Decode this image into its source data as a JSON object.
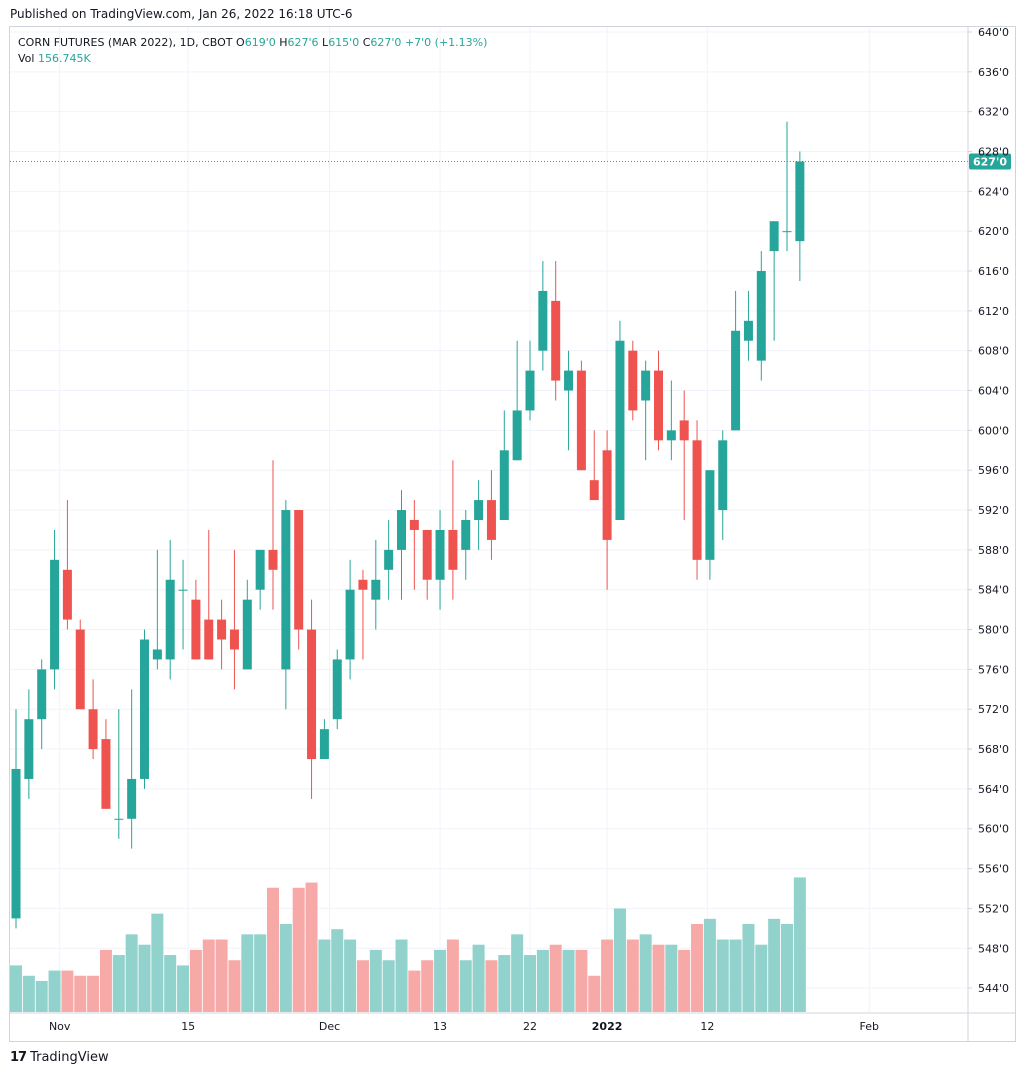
{
  "header": {
    "published": "Published on TradingView.com, Jan 26, 2022 16:18 UTC-6"
  },
  "legend": {
    "symbol": "CORN FUTURES (MAR 2022), 1D, CBOT",
    "o_label": "O",
    "o_value": "619'0",
    "h_label": "H",
    "h_value": "627'6",
    "l_label": "L",
    "l_value": "615'0",
    "c_label": "C",
    "c_value": "627'0",
    "change": "+7'0 (+1.13%)",
    "vol_label": "Vol",
    "vol_value": "156.745K"
  },
  "footer": {
    "brand": "TradingView",
    "logo": "17"
  },
  "colors": {
    "up": "#26a69a",
    "down": "#ef5350",
    "up_vol": "#92d2cc",
    "down_vol": "#f7a9a7",
    "grid": "#f0f3fa",
    "axis": "#d1d4dc"
  },
  "chart_data": {
    "type": "candlestick",
    "y_ticks": [
      "544'0",
      "548'0",
      "552'0",
      "556'0",
      "560'0",
      "564'0",
      "568'0",
      "572'0",
      "576'0",
      "580'0",
      "584'0",
      "588'0",
      "592'0",
      "596'0",
      "600'0",
      "604'0",
      "608'0",
      "612'0",
      "616'0",
      "620'0",
      "624'0",
      "628'0",
      "632'0",
      "636'0",
      "640'0"
    ],
    "y_tick_values": [
      544,
      548,
      552,
      556,
      560,
      564,
      568,
      572,
      576,
      580,
      584,
      588,
      592,
      596,
      600,
      604,
      608,
      612,
      616,
      620,
      624,
      628,
      632,
      636,
      640
    ],
    "ylim": [
      541.5,
      640.5
    ],
    "x_labels": [
      {
        "label": "Nov",
        "index": 3.4
      },
      {
        "label": "15",
        "index": 13.4
      },
      {
        "label": "Dec",
        "index": 24.4
      },
      {
        "label": "13",
        "index": 33.0
      },
      {
        "label": "22",
        "index": 40.0
      },
      {
        "label": "2022",
        "index": 46.0,
        "bold": true
      },
      {
        "label": "12",
        "index": 53.8
      },
      {
        "label": "Feb",
        "index": 66.4
      }
    ],
    "last_price": 627,
    "last_price_label": "627'0",
    "candles": [
      {
        "o": 551,
        "h": 572,
        "l": 550,
        "c": 566,
        "v": 548
      },
      {
        "o": 565,
        "h": 574,
        "l": 563,
        "c": 571,
        "v": 546
      },
      {
        "o": 571,
        "h": 577,
        "l": 568,
        "c": 576,
        "v": 545
      },
      {
        "o": 576,
        "h": 590,
        "l": 574,
        "c": 587,
        "v": 547
      },
      {
        "o": 586,
        "h": 593,
        "l": 580,
        "c": 581,
        "v": 547
      },
      {
        "o": 580,
        "h": 581,
        "l": 572,
        "c": 572,
        "v": 546
      },
      {
        "o": 572,
        "h": 575,
        "l": 567,
        "c": 568,
        "v": 546
      },
      {
        "o": 569,
        "h": 571,
        "l": 562,
        "c": 562,
        "v": 551
      },
      {
        "o": 561,
        "h": 572,
        "l": 559,
        "c": 561,
        "v": 550
      },
      {
        "o": 561,
        "h": 574,
        "l": 558,
        "c": 565,
        "v": 554
      },
      {
        "o": 565,
        "h": 580,
        "l": 564,
        "c": 579,
        "v": 552
      },
      {
        "o": 577,
        "h": 588,
        "l": 576,
        "c": 578,
        "v": 558
      },
      {
        "o": 577,
        "h": 589,
        "l": 575,
        "c": 585,
        "v": 550
      },
      {
        "o": 584,
        "h": 587,
        "l": 578,
        "c": 584,
        "v": 548
      },
      {
        "o": 583,
        "h": 585,
        "l": 577,
        "c": 577,
        "v": 551
      },
      {
        "o": 581,
        "h": 590,
        "l": 577,
        "c": 577,
        "v": 553
      },
      {
        "o": 581,
        "h": 583,
        "l": 576,
        "c": 579,
        "v": 553
      },
      {
        "o": 580,
        "h": 588,
        "l": 574,
        "c": 578,
        "v": 549
      },
      {
        "o": 576,
        "h": 585,
        "l": 576,
        "c": 583,
        "v": 554
      },
      {
        "o": 584,
        "h": 588,
        "l": 582,
        "c": 588,
        "v": 554
      },
      {
        "o": 588,
        "h": 597,
        "l": 582,
        "c": 586,
        "v": 563
      },
      {
        "o": 576,
        "h": 593,
        "l": 572,
        "c": 592,
        "v": 556
      },
      {
        "o": 592,
        "h": 592,
        "l": 578,
        "c": 580,
        "v": 563
      },
      {
        "o": 580,
        "h": 583,
        "l": 563,
        "c": 567,
        "v": 564
      },
      {
        "o": 567,
        "h": 571,
        "l": 567,
        "c": 570,
        "v": 553
      },
      {
        "o": 571,
        "h": 578,
        "l": 570,
        "c": 577,
        "v": 555
      },
      {
        "o": 577,
        "h": 587,
        "l": 575,
        "c": 584,
        "v": 553
      },
      {
        "o": 585,
        "h": 586,
        "l": 577,
        "c": 584,
        "v": 549
      },
      {
        "o": 583,
        "h": 589,
        "l": 580,
        "c": 585,
        "v": 551
      },
      {
        "o": 586,
        "h": 591,
        "l": 583,
        "c": 588,
        "v": 549
      },
      {
        "o": 588,
        "h": 594,
        "l": 583,
        "c": 592,
        "v": 553
      },
      {
        "o": 591,
        "h": 593,
        "l": 584,
        "c": 590,
        "v": 547
      },
      {
        "o": 590,
        "h": 590,
        "l": 583,
        "c": 585,
        "v": 549
      },
      {
        "o": 585,
        "h": 592,
        "l": 582,
        "c": 590,
        "v": 551
      },
      {
        "o": 590,
        "h": 597,
        "l": 583,
        "c": 586,
        "v": 553
      },
      {
        "o": 588,
        "h": 592,
        "l": 585,
        "c": 591,
        "v": 549
      },
      {
        "o": 591,
        "h": 595,
        "l": 588,
        "c": 593,
        "v": 552
      },
      {
        "o": 593,
        "h": 596,
        "l": 587,
        "c": 589,
        "v": 549
      },
      {
        "o": 591,
        "h": 602,
        "l": 591,
        "c": 598,
        "v": 550
      },
      {
        "o": 597,
        "h": 609,
        "l": 597,
        "c": 602,
        "v": 554
      },
      {
        "o": 602,
        "h": 609,
        "l": 601,
        "c": 606,
        "v": 550
      },
      {
        "o": 608,
        "h": 617,
        "l": 606,
        "c": 614,
        "v": 551
      },
      {
        "o": 613,
        "h": 617,
        "l": 603,
        "c": 605,
        "v": 552
      },
      {
        "o": 604,
        "h": 608,
        "l": 598,
        "c": 606,
        "v": 551
      },
      {
        "o": 606,
        "h": 607,
        "l": 596,
        "c": 596,
        "v": 551
      },
      {
        "o": 595,
        "h": 600,
        "l": 593,
        "c": 593,
        "v": 546
      },
      {
        "o": 598,
        "h": 600,
        "l": 584,
        "c": 589,
        "v": 553
      },
      {
        "o": 591,
        "h": 611,
        "l": 591,
        "c": 609,
        "v": 559
      },
      {
        "o": 608,
        "h": 609,
        "l": 601,
        "c": 602,
        "v": 553
      },
      {
        "o": 603,
        "h": 607,
        "l": 597,
        "c": 606,
        "v": 554
      },
      {
        "o": 606,
        "h": 608,
        "l": 598,
        "c": 599,
        "v": 552
      },
      {
        "o": 599,
        "h": 605,
        "l": 597,
        "c": 600,
        "v": 552
      },
      {
        "o": 601,
        "h": 604,
        "l": 591,
        "c": 599,
        "v": 551
      },
      {
        "o": 599,
        "h": 601,
        "l": 585,
        "c": 587,
        "v": 556
      },
      {
        "o": 587,
        "h": 596,
        "l": 585,
        "c": 596,
        "v": 557
      },
      {
        "o": 592,
        "h": 600,
        "l": 589,
        "c": 599,
        "v": 553
      },
      {
        "o": 600,
        "h": 614,
        "l": 600,
        "c": 610,
        "v": 553
      },
      {
        "o": 609,
        "h": 614,
        "l": 607,
        "c": 611,
        "v": 556
      },
      {
        "o": 607,
        "h": 618,
        "l": 605,
        "c": 616,
        "v": 552
      },
      {
        "o": 618,
        "h": 621,
        "l": 609,
        "c": 621,
        "v": 557
      },
      {
        "o": 620,
        "h": 631,
        "l": 618,
        "c": 620,
        "v": 556
      },
      {
        "o": 619,
        "h": 628,
        "l": 615,
        "c": 627,
        "v": 565
      }
    ],
    "vol_range": [
      539,
      590
    ]
  }
}
